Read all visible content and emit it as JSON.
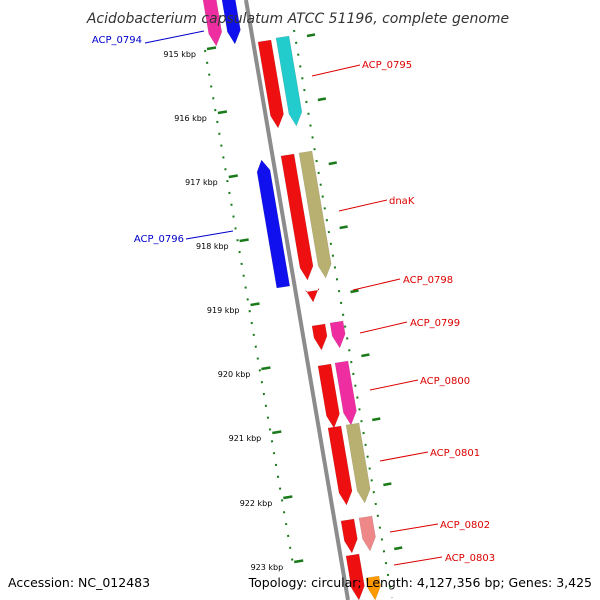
{
  "title": "Acidobacterium capsulatum ATCC 51196, complete genome",
  "footer": {
    "accession": "Accession: NC_012483",
    "summary": "Topology: circular; Length: 4,127,356 bp; Genes: 3,425"
  },
  "colors": {
    "backbone": "#8c8c8c",
    "tick": "#1a7a1a",
    "label_forward": "#dd0000",
    "label_reverse": "#0000cc"
  },
  "kbp_ticks": [
    "915 kbp",
    "916 kbp",
    "917 kbp",
    "918 kbp",
    "919 kbp",
    "920 kbp",
    "921 kbp",
    "922 kbp",
    "923 kbp"
  ],
  "gene_labels": [
    {
      "name": "ACP_0794",
      "strand": "reverse"
    },
    {
      "name": "ACP_0795",
      "strand": "forward"
    },
    {
      "name": "dnaK",
      "strand": "forward"
    },
    {
      "name": "ACP_0796",
      "strand": "reverse"
    },
    {
      "name": "ACP_0798",
      "strand": "forward"
    },
    {
      "name": "ACP_0799",
      "strand": "forward"
    },
    {
      "name": "ACP_0800",
      "strand": "forward"
    },
    {
      "name": "ACP_0801",
      "strand": "forward"
    },
    {
      "name": "ACP_0802",
      "strand": "forward"
    },
    {
      "name": "ACP_0803",
      "strand": "forward"
    }
  ]
}
